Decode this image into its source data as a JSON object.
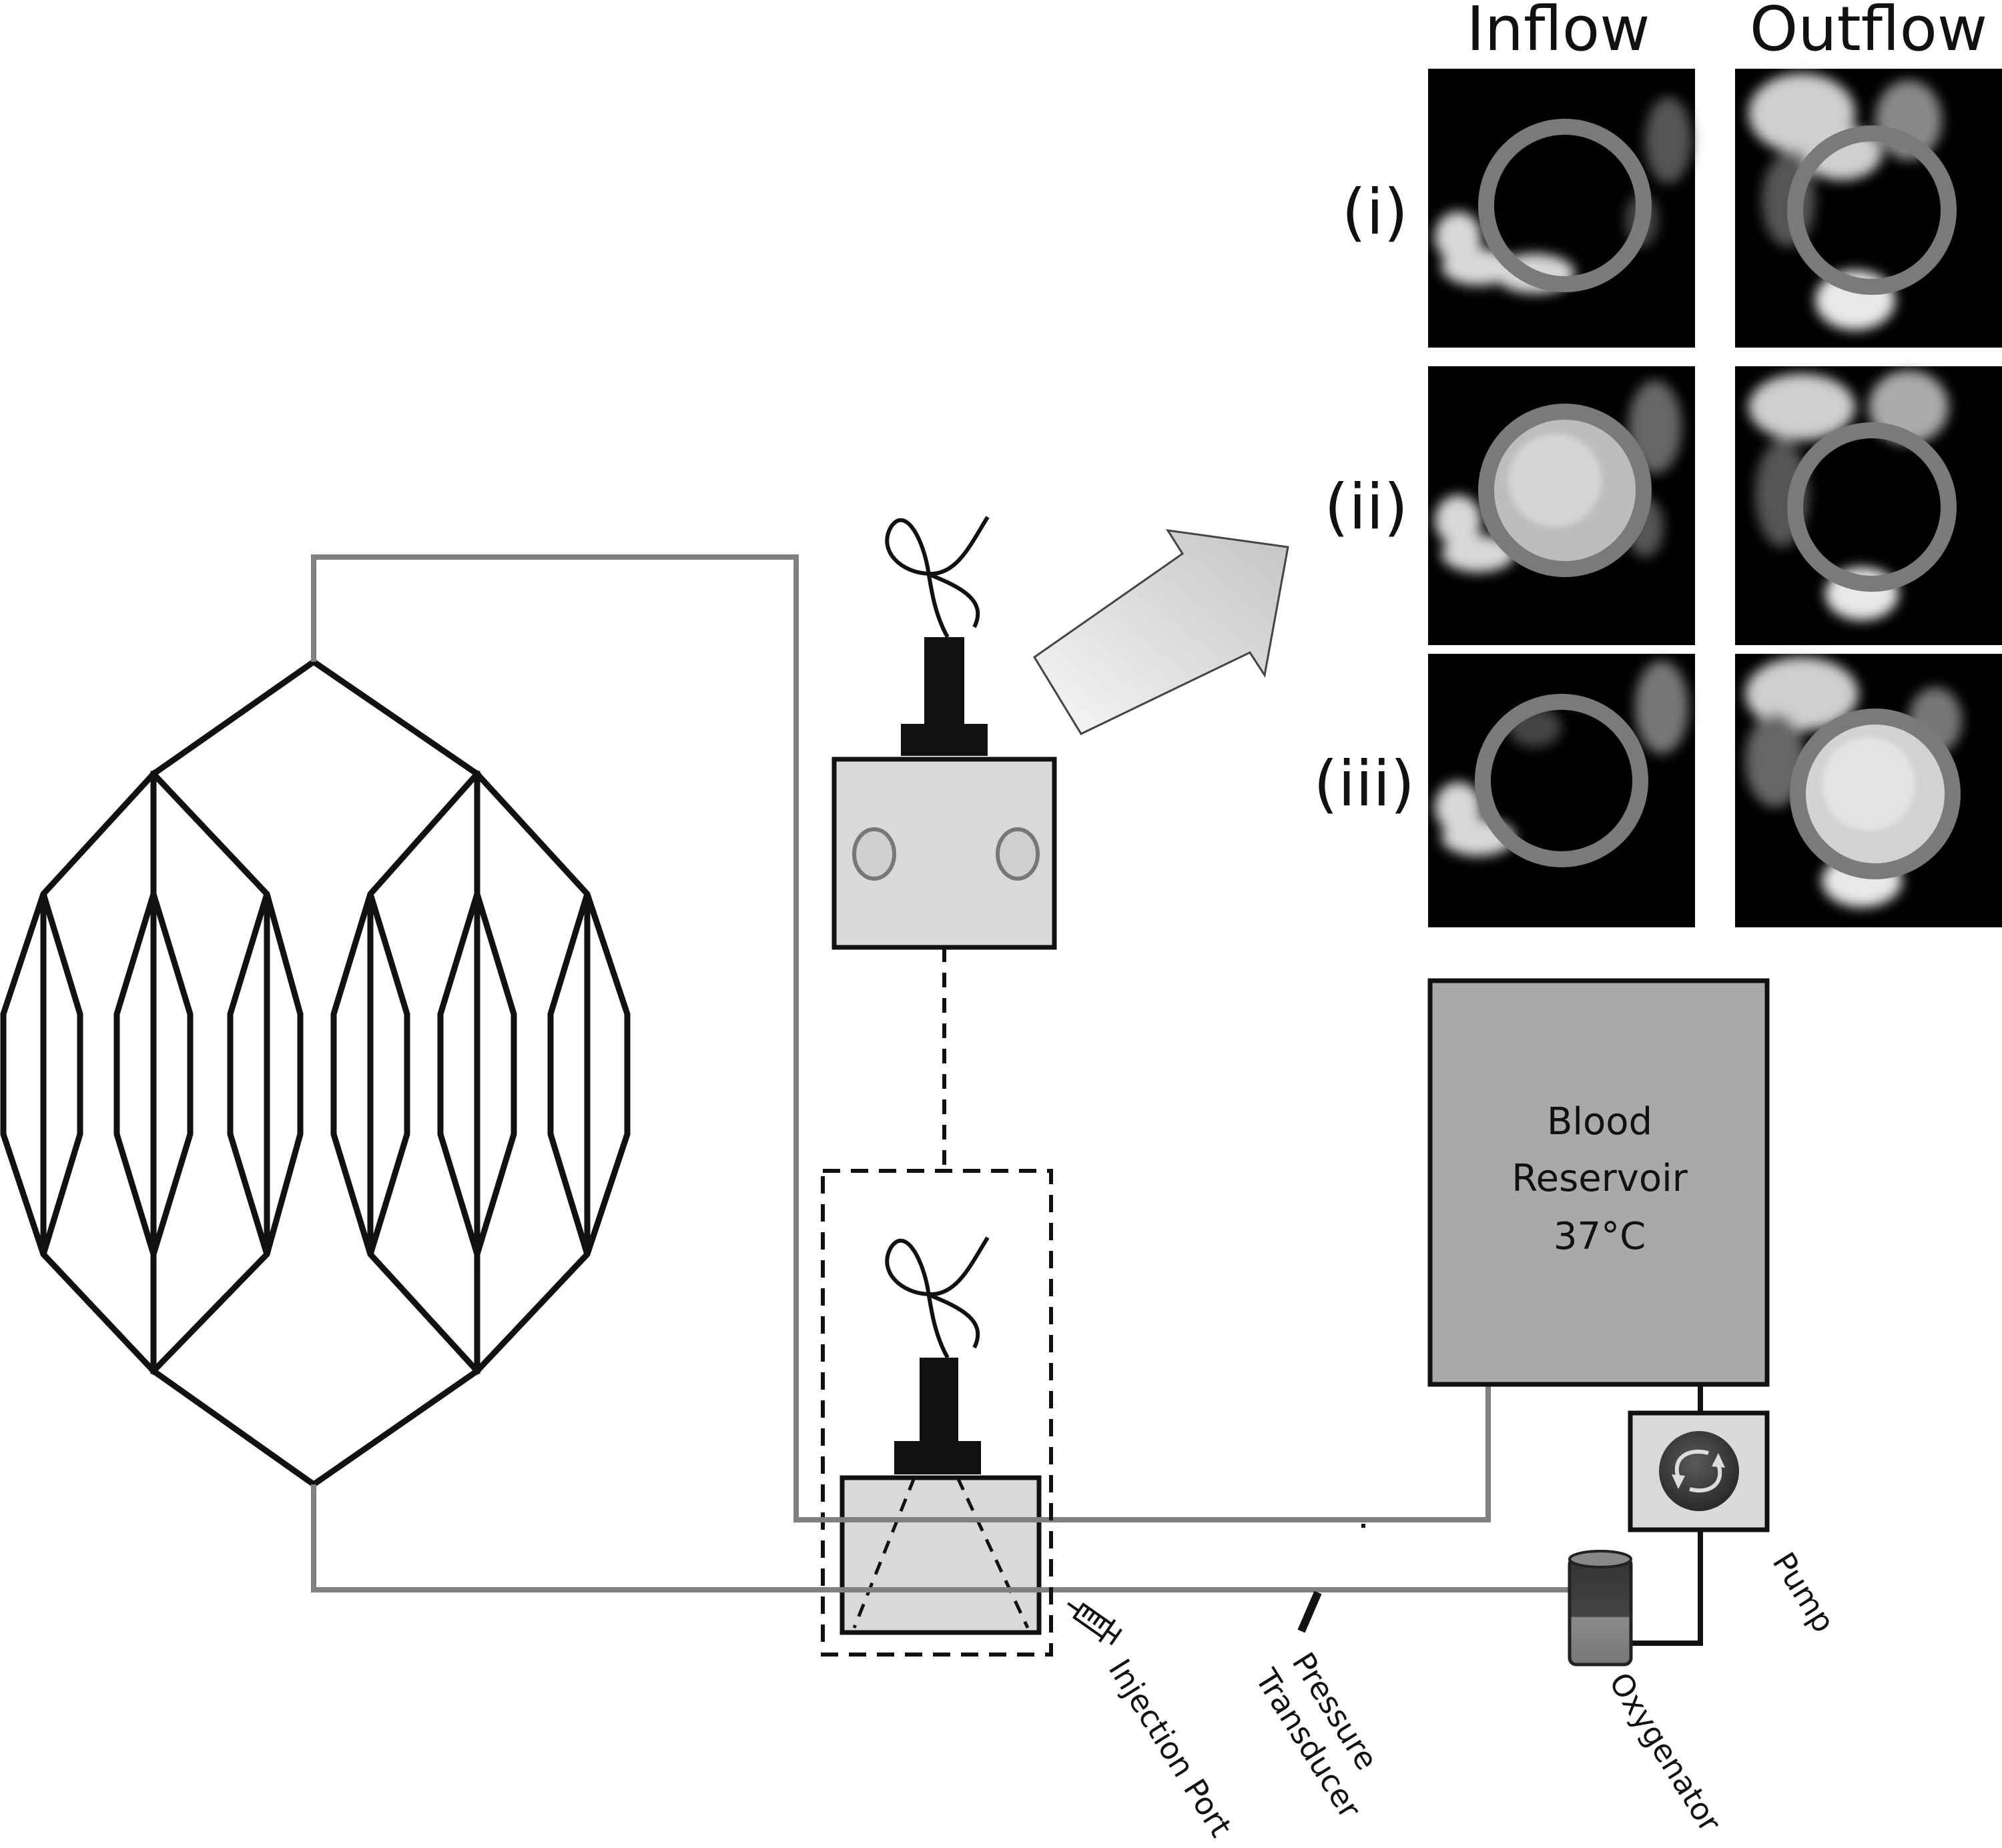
{
  "columns": {
    "inflow": "Inflow",
    "outflow": "Outflow"
  },
  "rows": [
    {
      "label": "(i)",
      "inflow_filled": false,
      "outflow_filled": false
    },
    {
      "label": "(ii)",
      "inflow_filled": true,
      "outflow_filled": false
    },
    {
      "label": "(iii)",
      "inflow_filled": false,
      "outflow_filled": true
    }
  ],
  "reservoir": {
    "line1": "Blood",
    "line2": "Reservoir",
    "line3": "37°C"
  },
  "labels": {
    "pump": "Pump",
    "oxygenator": "Oxygenator",
    "pressure_line1": "Pressure",
    "pressure_line2": "Transducer",
    "injection_port": "Injection Port"
  },
  "colors": {
    "tubing": "#808080",
    "network": "#111111",
    "reservoir_fill": "#a9a9a9",
    "chamber_fill": "#d9d9d9",
    "roi_ring": "#7a7a7a",
    "ultrasound_bg": "#000000"
  }
}
